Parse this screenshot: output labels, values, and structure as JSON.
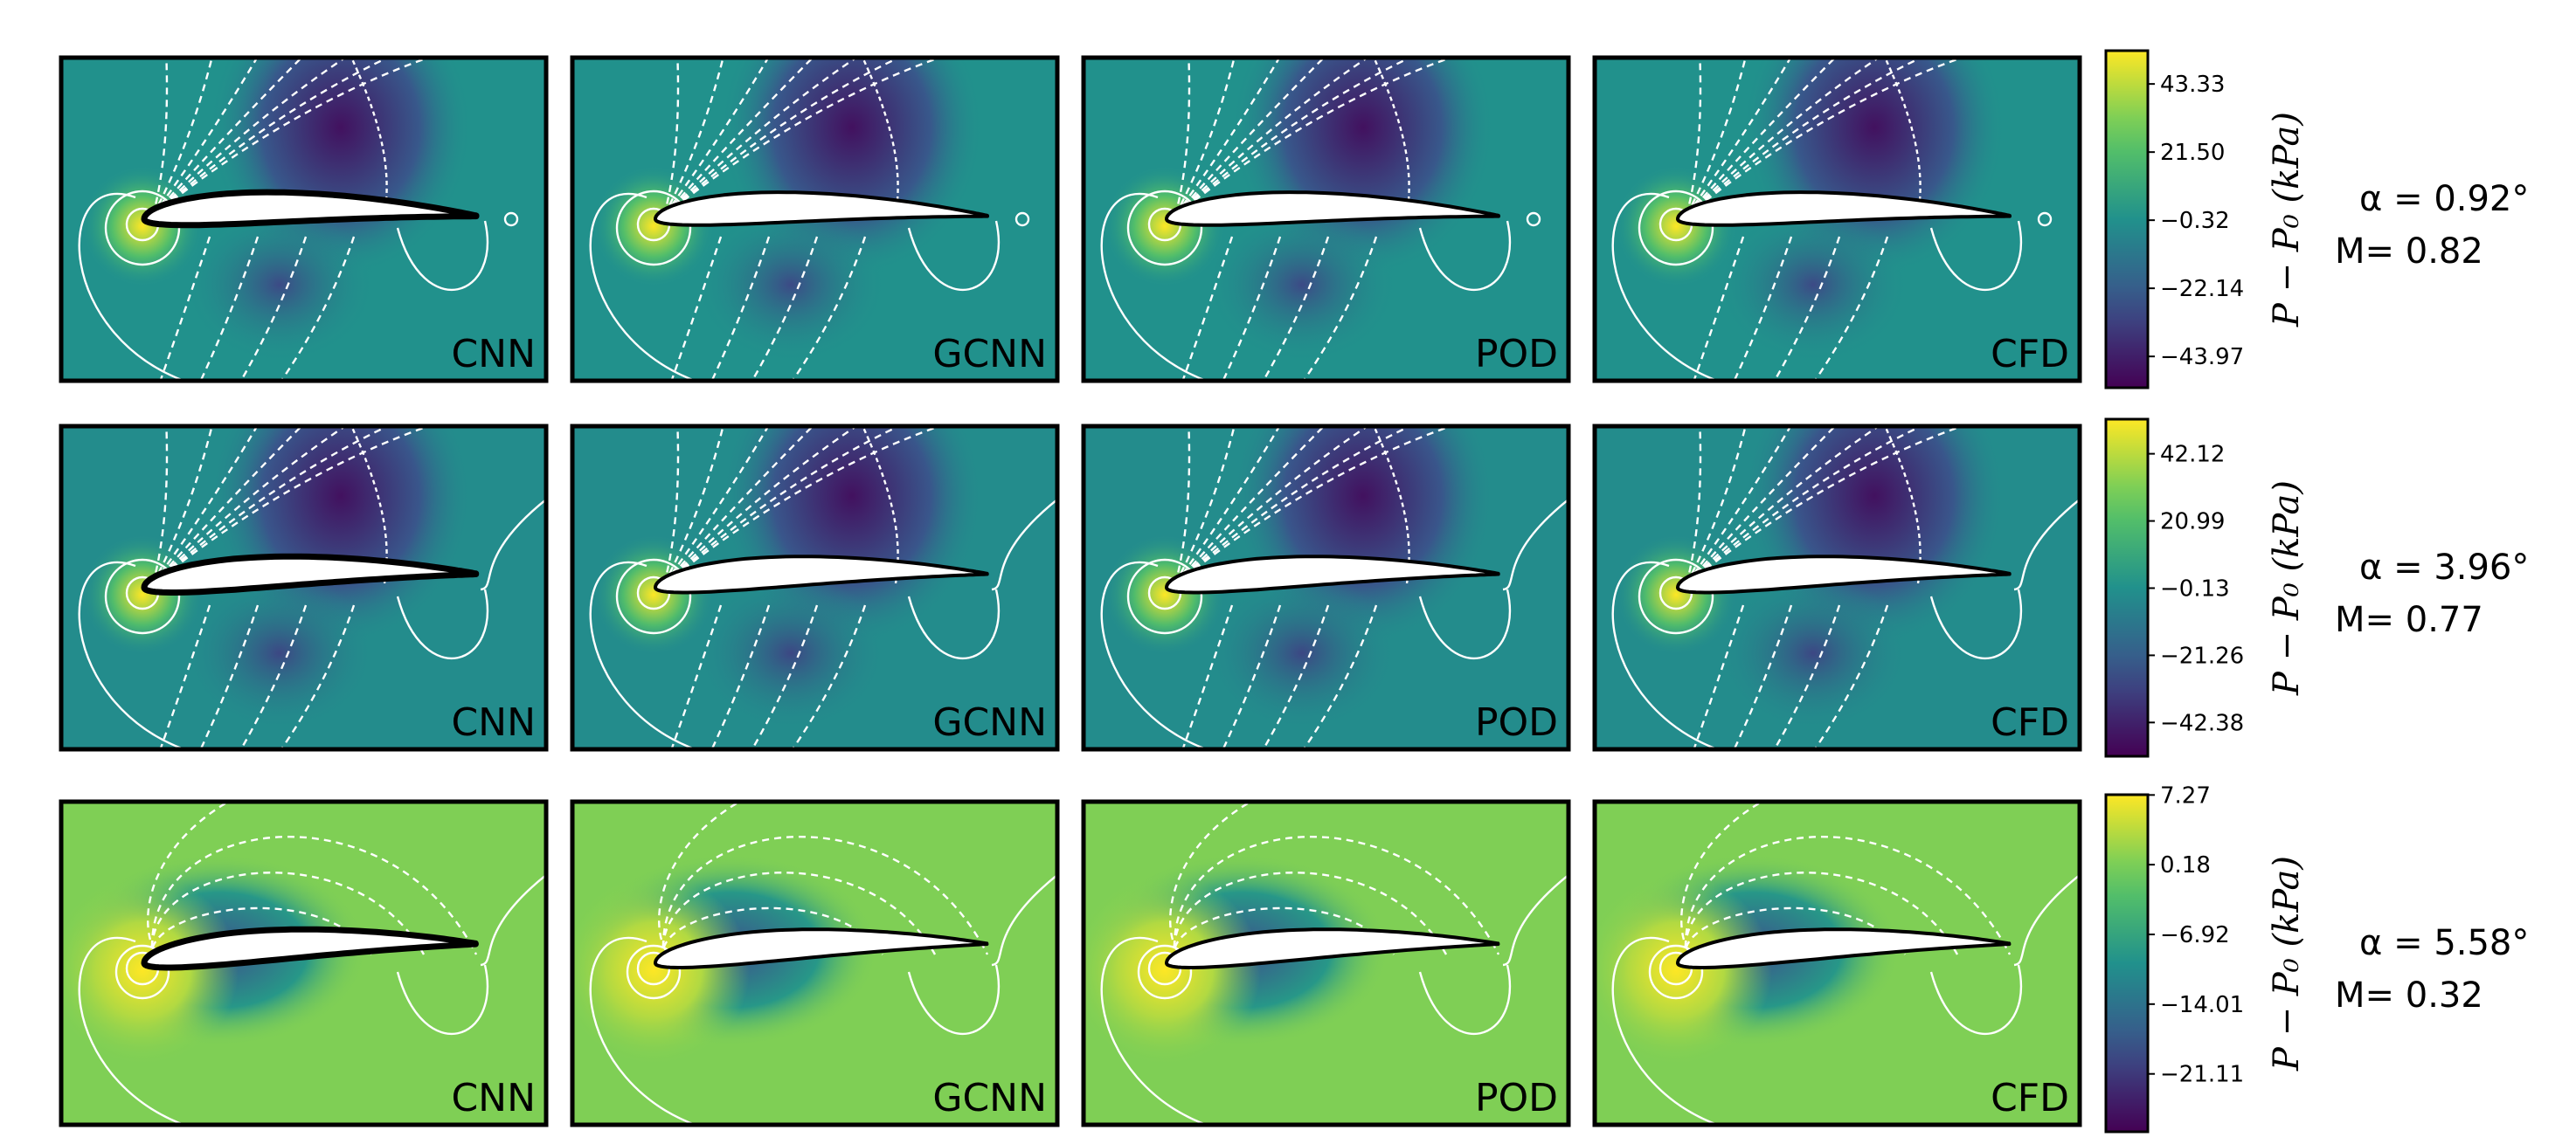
{
  "chart_data": {
    "type": "heatmap",
    "description_quantity": "pressure contour fields around airfoil",
    "colormap": [
      "#440154",
      "#3b528b",
      "#21918c",
      "#5ec962",
      "#fde725"
    ],
    "methods": [
      "CNN",
      "GCNN",
      "POD",
      "CFD"
    ],
    "colorbar_label": "P − P₀ (kPa)",
    "rows": [
      {
        "alpha_text": "α = 0.92°",
        "mach_text": "M= 0.82",
        "alpha": 0.92,
        "mach": 0.82,
        "ticks": [
          "43.33",
          "21.50",
          "−0.32",
          "−22.14",
          "−43.97"
        ],
        "range": [
          -54.0,
          54.0
        ],
        "background_value": 0.0
      },
      {
        "alpha_text": "α = 3.96°",
        "mach_text": "M= 0.77",
        "alpha": 3.96,
        "mach": 0.77,
        "ticks": [
          "42.12",
          "20.99",
          "−0.13",
          "−21.26",
          "−42.38"
        ],
        "range": [
          -53.0,
          53.0
        ],
        "background_value": -2.0
      },
      {
        "alpha_text": "α =  5.58°",
        "mach_text": "M= 0.32",
        "alpha": 5.58,
        "mach": 0.32,
        "ticks": [
          "7.27",
          "0.18",
          "−6.92",
          "−14.01",
          "−21.11"
        ],
        "range": [
          -27.0,
          7.3
        ],
        "background_value": 0.5
      }
    ]
  }
}
